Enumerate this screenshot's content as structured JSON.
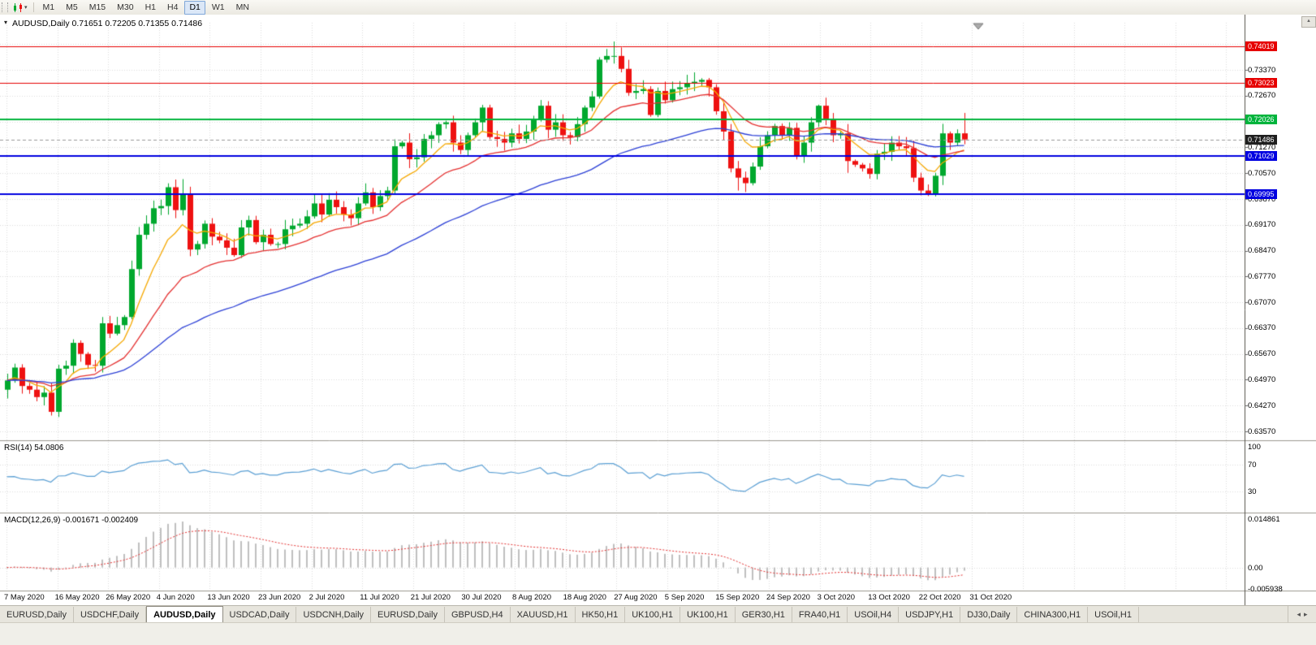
{
  "toolbar": {
    "periods": [
      "M1",
      "M5",
      "M15",
      "M30",
      "H1",
      "H4",
      "D1",
      "W1",
      "MN"
    ],
    "active_period": "D1"
  },
  "icons": {
    "chart_type_caret": "▾",
    "title_triangle": "▾",
    "tab_scroll_left": "◂",
    "tab_scroll_right": "▸",
    "chart_scroll_up": "▲"
  },
  "chart_data": {
    "type": "candlestick",
    "symbol": "AUDUSD",
    "timeframe": "Daily",
    "title_overlay": "AUDUSD,Daily 0.71651 0.72205 0.71355 0.71486",
    "current_bar": {
      "open": 0.71651,
      "high": 0.72205,
      "low": 0.71355,
      "close": 0.71486
    },
    "x_labels": [
      "7 May 2020",
      "16 May 2020",
      "26 May 2020",
      "4 Jun 2020",
      "13 Jun 2020",
      "23 Jun 2020",
      "2 Jul 2020",
      "11 Jul 2020",
      "21 Jul 2020",
      "30 Jul 2020",
      "8 Aug 2020",
      "18 Aug 2020",
      "27 Aug 2020",
      "5 Sep 2020",
      "15 Sep 2020",
      "24 Sep 2020",
      "3 Oct 2020",
      "13 Oct 2020",
      "22 Oct 2020",
      "31 Oct 2020"
    ],
    "y_axis": {
      "price_top": 0.7465,
      "price_bottom": 0.6335,
      "tick_labels": [
        "0.63570",
        "0.64270",
        "0.64970",
        "0.65670",
        "0.66370",
        "0.67070",
        "0.67770",
        "0.68470",
        "0.69170",
        "0.69870",
        "0.70570",
        "0.71270",
        "0.71970",
        "0.72670",
        "0.73370",
        "0.74070"
      ]
    },
    "first_open": 0.647,
    "closes": [
      0.6495,
      0.653,
      0.648,
      0.647,
      0.645,
      0.6462,
      0.641,
      0.6527,
      0.6535,
      0.6597,
      0.6567,
      0.6537,
      0.6535,
      0.665,
      0.6622,
      0.6645,
      0.6667,
      0.6797,
      0.689,
      0.692,
      0.6962,
      0.6968,
      0.7019,
      0.6957,
      0.7,
      0.685,
      0.6865,
      0.692,
      0.6885,
      0.6875,
      0.6855,
      0.6835,
      0.691,
      0.693,
      0.687,
      0.689,
      0.6865,
      0.6865,
      0.6905,
      0.6915,
      0.692,
      0.694,
      0.6975,
      0.6945,
      0.6985,
      0.6965,
      0.6945,
      0.6935,
      0.6975,
      0.7005,
      0.6965,
      0.6995,
      0.701,
      0.713,
      0.714,
      0.7095,
      0.71,
      0.715,
      0.716,
      0.719,
      0.7195,
      0.714,
      0.712,
      0.716,
      0.7195,
      0.7235,
      0.7155,
      0.715,
      0.714,
      0.7165,
      0.715,
      0.717,
      0.7205,
      0.724,
      0.7175,
      0.7195,
      0.716,
      0.7155,
      0.719,
      0.7235,
      0.7265,
      0.7365,
      0.7375,
      0.7375,
      0.734,
      0.7275,
      0.728,
      0.7285,
      0.7215,
      0.728,
      0.7255,
      0.7285,
      0.729,
      0.73,
      0.7305,
      0.731,
      0.729,
      0.7225,
      0.717,
      0.707,
      0.7045,
      0.703,
      0.7075,
      0.713,
      0.716,
      0.7185,
      0.716,
      0.718,
      0.7105,
      0.714,
      0.7195,
      0.724,
      0.7205,
      0.716,
      0.7165,
      0.709,
      0.708,
      0.707,
      0.7055,
      0.711,
      0.7115,
      0.714,
      0.713,
      0.7125,
      0.7045,
      0.701,
      0.7002,
      0.705,
      0.7165,
      0.714,
      0.71651,
      0.71486
    ],
    "wick_overrides": [
      {
        "i": 6,
        "low": 0.64
      },
      {
        "i": 24,
        "high": 0.7041
      },
      {
        "i": 25,
        "low": 0.6832
      },
      {
        "i": 53,
        "high": 0.7149
      },
      {
        "i": 83,
        "high": 0.7414
      },
      {
        "i": 84,
        "high": 0.7398
      },
      {
        "i": 100,
        "low": 0.701
      },
      {
        "i": 101,
        "low": 0.7006
      },
      {
        "i": 111,
        "high": 0.7243
      },
      {
        "i": 115,
        "low": 0.7058
      },
      {
        "i": 125,
        "low": 0.6997
      },
      {
        "i": 126,
        "low": 0.6995
      },
      {
        "i": 127,
        "low": 0.6994
      }
    ],
    "levels": [
      {
        "price": 0.74019,
        "label": "0.74019",
        "color": "#e60000",
        "width": 1
      },
      {
        "price": 0.73023,
        "label": "0.73023",
        "color": "#e60000",
        "width": 1
      },
      {
        "price": 0.72026,
        "label": "0.72026",
        "color": "#00b43c",
        "width": 2
      },
      {
        "price": 0.71029,
        "label": "0.71029",
        "color": "#0000e0",
        "width": 2
      },
      {
        "price": 0.69995,
        "label": "0.69995",
        "color": "#0000e0",
        "width": 2
      }
    ],
    "current_price": {
      "value": 0.71486,
      "label": "0.71486",
      "bg": "#1f1f1f"
    },
    "moving_averages": [
      {
        "type": "ema",
        "period": 8,
        "color": "#f6a800"
      },
      {
        "type": "ema",
        "period": 20,
        "color": "#e53030"
      },
      {
        "type": "ema",
        "period": 50,
        "color": "#2b3fd6"
      }
    ],
    "indicators": {
      "rsi": {
        "label": "RSI(14) 54.0806",
        "period": 14,
        "value": 54.0806,
        "color": "#5a9fd4",
        "levels": [
          70,
          30
        ],
        "scale": [
          {
            "v": 100,
            "label": "100"
          },
          {
            "v": 70,
            "label": "70"
          },
          {
            "v": 30,
            "label": "30"
          }
        ]
      },
      "macd": {
        "label": "MACD(12,26,9) -0.001671 -0.002409",
        "fast": 12,
        "slow": 26,
        "signal_period": 9,
        "value": -0.001671,
        "signal_value": -0.002409,
        "hist_color": "#bfbfbf",
        "signal_color": "#e53030",
        "scale": [
          {
            "v": 0.014861,
            "label": "0.014861"
          },
          {
            "v": 0,
            "label": "0.00"
          },
          {
            "v": -0.005938,
            "label": "-0.005938"
          }
        ]
      }
    },
    "colors": {
      "up": "#00a82e",
      "down": "#ee1111",
      "grid": "#dcdcdc",
      "current_price_line": "#9a9a9a"
    }
  },
  "tabs": {
    "items": [
      "EURUSD,Daily",
      "USDCHF,Daily",
      "AUDUSD,Daily",
      "USDCAD,Daily",
      "USDCNH,Daily",
      "EURUSD,Daily",
      "GBPUSD,H4",
      "XAUUSD,H1",
      "HK50,H1",
      "UK100,H1",
      "UK100,H1",
      "GER30,H1",
      "FRA40,H1",
      "USOil,H4",
      "USDJPY,H1",
      "DJ30,Daily",
      "CHINA300,H1",
      "USOil,H1"
    ],
    "active_index": 2
  }
}
